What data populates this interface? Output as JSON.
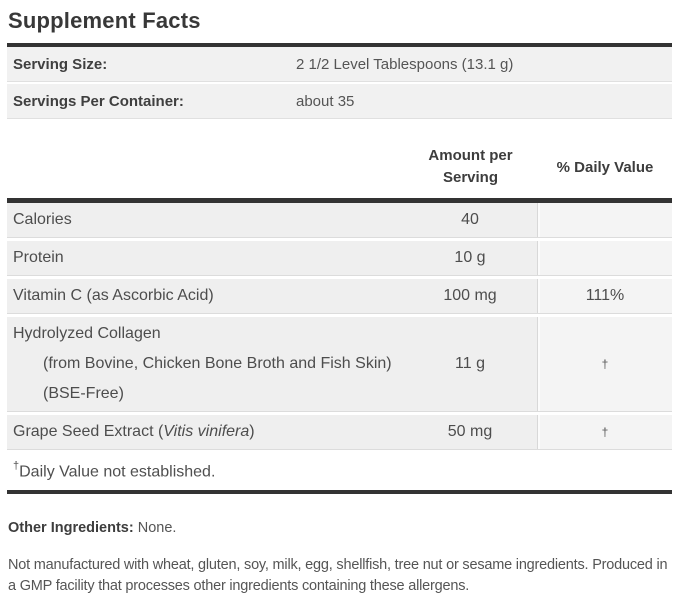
{
  "label": {
    "title": "Supplement Facts",
    "serving_info": [
      {
        "label": "Serving Size:",
        "value": "2 1/2 Level Tablespoons (13.1 g)"
      },
      {
        "label": "Servings Per Container:",
        "value": "about 35"
      }
    ],
    "columns": {
      "amount_header_line1": "Amount per",
      "amount_header_line2": "Serving",
      "dv_header": "% Daily Value"
    },
    "rows": [
      {
        "name": "Calories",
        "amount": "40",
        "dv": ""
      },
      {
        "name": "Protein",
        "amount": "10 g",
        "dv": ""
      },
      {
        "name": "Vitamin C (as Ascorbic Acid)",
        "amount": "100 mg",
        "dv": "111%"
      },
      {
        "name": "Hydrolyzed Collagen",
        "detail": "(from Bovine, Chicken Bone Broth and Fish Skin) (BSE-Free)",
        "amount": "11 g",
        "dv": "†"
      },
      {
        "name_prefix": "Grape Seed Extract (",
        "name_italic": "Vitis vinifera",
        "name_suffix": ")",
        "amount": "50 mg",
        "dv": "†"
      }
    ],
    "footnote": {
      "dagger": "†",
      "text": "Daily Value not established."
    },
    "other_ingredients": {
      "label": "Other Ingredients:",
      "value": " None."
    },
    "allergen_statement": "Not manufactured with wheat, gluten, soy, milk, egg, shellfish, tree nut or sesame ingredients. Produced in a GMP facility that processes other ingredients containing these allergens."
  },
  "colors": {
    "divider_bar": "#333333",
    "row_background": "#efefef",
    "daily_value_cell_background": "#f4f4f4",
    "title_text": "#383838",
    "body_text": "#555555"
  }
}
